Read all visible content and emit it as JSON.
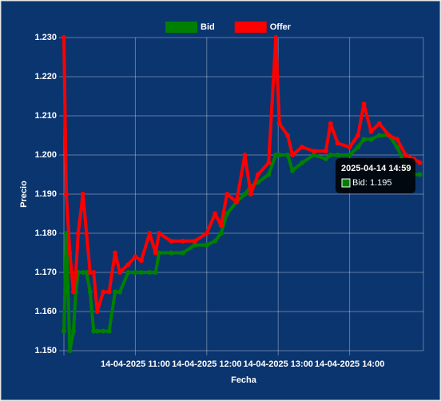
{
  "chart_data": {
    "type": "line",
    "x_label": "Fecha",
    "y_label": "Precio",
    "x": [
      "2025-04-14 10:00",
      "2025-04-14 10:02",
      "2025-04-14 10:05",
      "2025-04-14 10:08",
      "2025-04-14 10:10",
      "2025-04-14 10:12",
      "2025-04-14 10:16",
      "2025-04-14 10:19",
      "2025-04-14 10:22",
      "2025-04-14 10:25",
      "2025-04-14 10:28",
      "2025-04-14 10:33",
      "2025-04-14 10:38",
      "2025-04-14 10:43",
      "2025-04-14 10:47",
      "2025-04-14 10:54",
      "2025-04-14 11:00",
      "2025-04-14 11:05",
      "2025-04-14 11:12",
      "2025-04-14 11:17",
      "2025-04-14 11:20",
      "2025-04-14 11:30",
      "2025-04-14 11:40",
      "2025-04-14 11:50",
      "2025-04-14 12:00",
      "2025-04-14 12:07",
      "2025-04-14 12:12",
      "2025-04-14 12:17",
      "2025-04-14 12:25",
      "2025-04-14 12:32",
      "2025-04-14 12:37",
      "2025-04-14 12:43",
      "2025-04-14 12:52",
      "2025-04-14 12:58",
      "2025-04-14 13:01",
      "2025-04-14 13:08",
      "2025-04-14 13:12",
      "2025-04-14 13:20",
      "2025-04-14 13:30",
      "2025-04-14 13:40",
      "2025-04-14 13:44",
      "2025-04-14 13:50",
      "2025-04-14 14:00",
      "2025-04-14 14:07",
      "2025-04-14 14:12",
      "2025-04-14 14:18",
      "2025-04-14 14:25",
      "2025-04-14 14:33",
      "2025-04-14 14:40",
      "2025-04-14 14:47",
      "2025-04-14 14:54",
      "2025-04-14 14:59"
    ],
    "series": [
      {
        "name": "Bid",
        "color": "#008000",
        "values": [
          1.155,
          1.18,
          1.15,
          1.155,
          1.165,
          1.17,
          1.17,
          1.17,
          1.165,
          1.155,
          1.155,
          1.155,
          1.155,
          1.165,
          1.165,
          1.17,
          1.17,
          1.17,
          1.17,
          1.17,
          1.175,
          1.175,
          1.175,
          1.177,
          1.177,
          1.178,
          1.18,
          1.185,
          1.188,
          1.19,
          1.192,
          1.193,
          1.195,
          1.2,
          1.2,
          1.2,
          1.196,
          1.198,
          1.2,
          1.199,
          1.2,
          1.2,
          1.2,
          1.202,
          1.204,
          1.204,
          1.205,
          1.205,
          1.202,
          1.197,
          1.195,
          1.195
        ]
      },
      {
        "name": "Offer",
        "color": "#ff0000",
        "values": [
          1.23,
          1.19,
          1.175,
          1.165,
          1.17,
          1.18,
          1.19,
          1.18,
          1.17,
          1.17,
          1.16,
          1.165,
          1.165,
          1.175,
          1.17,
          1.172,
          1.174,
          1.173,
          1.18,
          1.175,
          1.18,
          1.178,
          1.178,
          1.178,
          1.18,
          1.185,
          1.182,
          1.19,
          1.188,
          1.2,
          1.19,
          1.195,
          1.198,
          1.23,
          1.208,
          1.205,
          1.2,
          1.202,
          1.201,
          1.201,
          1.208,
          1.203,
          1.202,
          1.205,
          1.213,
          1.206,
          1.208,
          1.205,
          1.204,
          1.2,
          1.199,
          1.198
        ]
      }
    ],
    "xlim": [
      "2025-04-14 10:00",
      "2025-04-14 15:02"
    ],
    "xticks": [
      {
        "value": "2025-04-14 11:00",
        "label": "14-04-2025 11:00"
      },
      {
        "value": "2025-04-14 12:00",
        "label": "14-04-2025 12:00"
      },
      {
        "value": "2025-04-14 13:00",
        "label": "14-04-2025 13:00"
      },
      {
        "value": "2025-04-14 14:00",
        "label": "14-04-2025 14:00"
      }
    ],
    "ylim": [
      1.15,
      1.23
    ],
    "yticks": [
      {
        "value": 1.15,
        "label": "1.150"
      },
      {
        "value": 1.16,
        "label": "1.160"
      },
      {
        "value": 1.17,
        "label": "1.170"
      },
      {
        "value": 1.18,
        "label": "1.180"
      },
      {
        "value": 1.19,
        "label": "1.190"
      },
      {
        "value": 1.2,
        "label": "1.200"
      },
      {
        "value": 1.21,
        "label": "1.210"
      },
      {
        "value": 1.22,
        "label": "1.220"
      },
      {
        "value": 1.23,
        "label": "1.230"
      }
    ],
    "grid": true,
    "legend": "top",
    "tooltip_label": "Bid: 1.195"
  }
}
